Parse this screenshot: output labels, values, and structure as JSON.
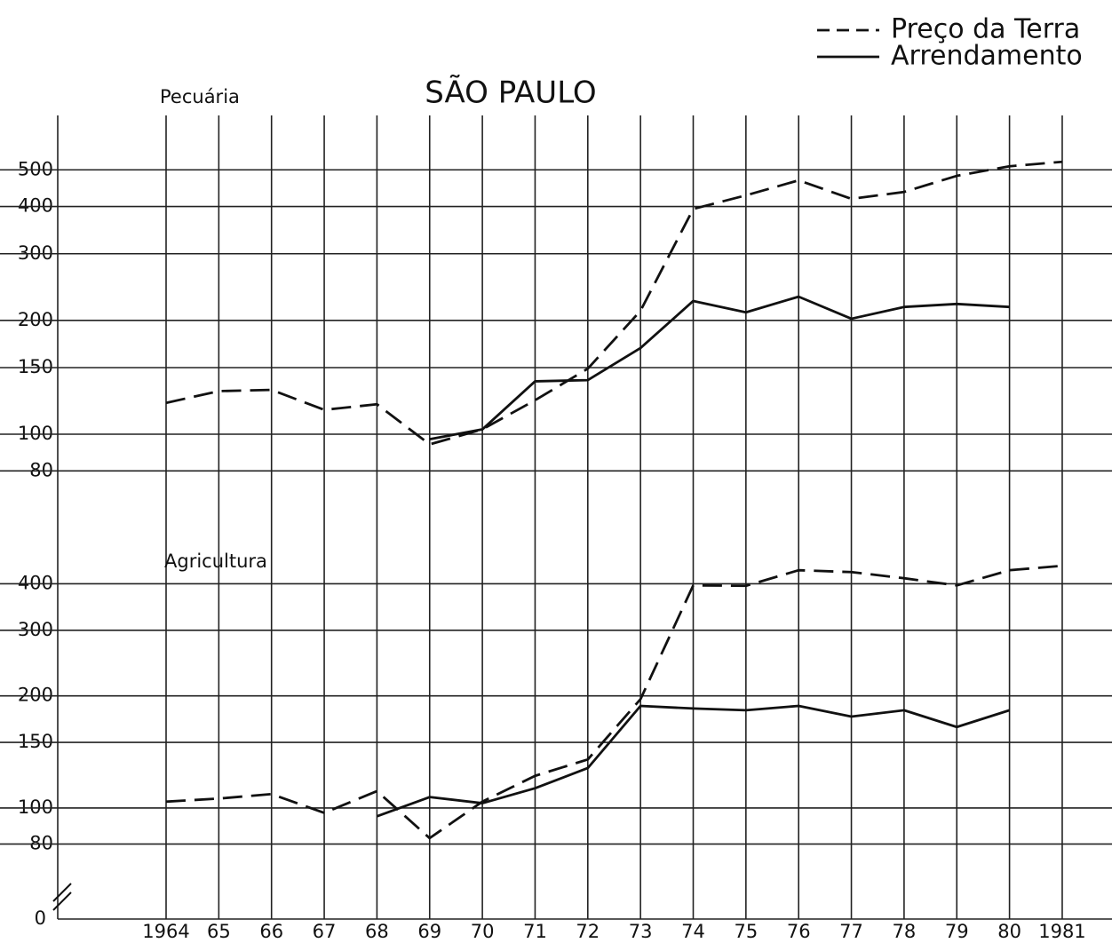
{
  "chart_data": {
    "type": "line",
    "title": "SÃO PAULO",
    "yscale": "log",
    "grid": true,
    "legend_position": "top-right",
    "color": "#111111",
    "categories": [
      "1964",
      "65",
      "66",
      "67",
      "68",
      "69",
      "70",
      "71",
      "72",
      "73",
      "74",
      "75",
      "76",
      "77",
      "78",
      "79",
      "80",
      "1981"
    ],
    "series": [
      {
        "name": "Preço da Terra",
        "dash": true
      },
      {
        "name": "Arrendamento",
        "dash": false
      }
    ],
    "baseline": 0,
    "panels": [
      {
        "label": "Pecuária",
        "ylim": [
          70,
          700
        ],
        "yticks": [
          80,
          100,
          150,
          200,
          300,
          400,
          500
        ],
        "values": [
          [
            121,
            130,
            131,
            116,
            120,
            94,
            103,
            123,
            149,
            212,
            394,
            428,
            469,
            419,
            437,
            482,
            511,
            525
          ],
          [
            null,
            null,
            null,
            null,
            null,
            97,
            103,
            138,
            139,
            169,
            225,
            210,
            231,
            202,
            217,
            221,
            217,
            null
          ]
        ]
      },
      {
        "label": "Agricultura",
        "ylim": [
          60,
          450
        ],
        "yticks": [
          80,
          100,
          150,
          200,
          300,
          400
        ],
        "values": [
          [
            104,
            106,
            109,
            97,
            111,
            83,
            104,
            122,
            135,
            196,
            396,
            395,
            435,
            430,
            414,
            396,
            435,
            447
          ],
          [
            null,
            null,
            null,
            null,
            95,
            107,
            103,
            113,
            128,
            188,
            185,
            183,
            188,
            176,
            183,
            165,
            183,
            null
          ]
        ]
      }
    ]
  }
}
